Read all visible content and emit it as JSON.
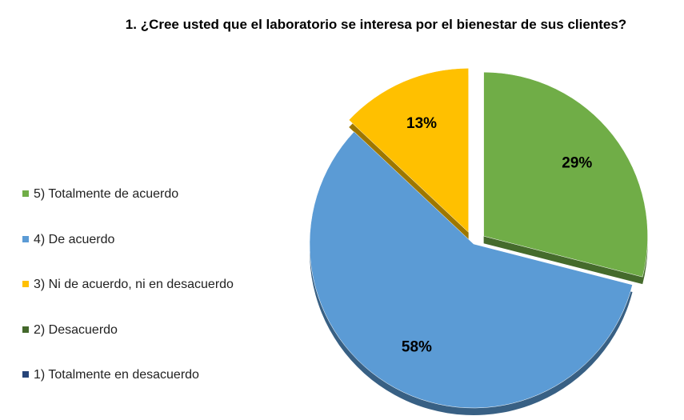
{
  "chart_data": {
    "type": "pie",
    "title": "1. ¿Cree usted que el laboratorio se interesa por el bienestar de sus clientes?",
    "categories": [
      "5) Totalmente de acuerdo",
      "4) De acuerdo",
      "3) Ni de acuerdo, ni en desacuerdo",
      "2) Desacuerdo",
      "1) Totalmente en desacuerdo"
    ],
    "values": [
      29,
      58,
      13,
      0,
      0
    ],
    "value_labels": [
      "29%",
      "58%",
      "13%",
      null,
      null
    ],
    "colors": [
      "#70ad47",
      "#5b9bd5",
      "#ffc000",
      "#43682b",
      "#264478"
    ],
    "legend": "left"
  }
}
